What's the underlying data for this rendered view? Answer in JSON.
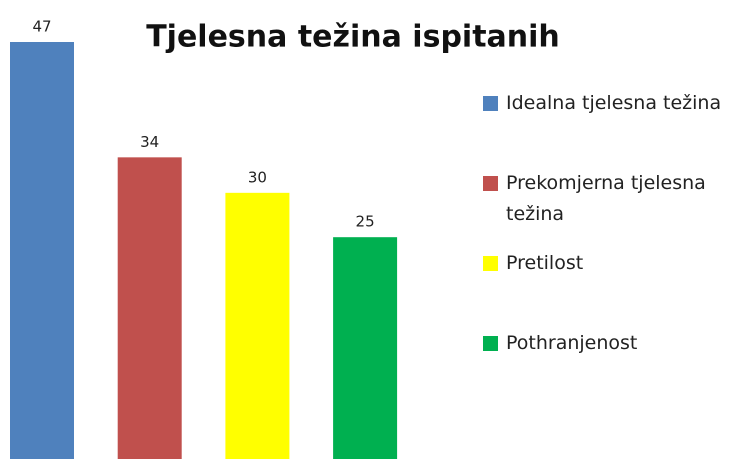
{
  "chart_data": {
    "type": "bar",
    "title": "Tjelesna težina ispitanih",
    "categories": [
      "Idealna tjelesna težina",
      "Prekomjerna tjelesna težina",
      "Pretilost",
      "Pothranjenost"
    ],
    "values": [
      47,
      34,
      30,
      25
    ],
    "colors": [
      "#4f81bd",
      "#c0504d",
      "#ffff00",
      "#00b050"
    ],
    "legend": "right"
  }
}
